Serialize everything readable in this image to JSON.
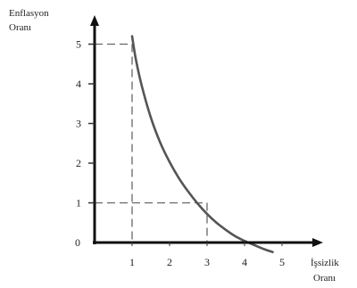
{
  "chart_data": {
    "type": "line",
    "ylabel_lines": [
      "Enflasyon",
      "Oranı"
    ],
    "xlabel_lines": [
      "İşsizlik",
      "Oranı"
    ],
    "origin_label": "0",
    "xlim": [
      0,
      5.5
    ],
    "ylim": [
      0,
      5.5
    ],
    "xticks": [
      "1",
      "2",
      "3",
      "4",
      "5"
    ],
    "yticks": [
      "1",
      "2",
      "3",
      "4",
      "5"
    ],
    "grid": false,
    "series": [
      {
        "x": [
          1.0,
          1.1,
          1.25,
          1.5,
          1.75,
          2.0,
          2.25,
          2.5,
          2.75,
          3.0,
          3.25,
          3.5,
          3.75,
          4.0,
          4.1,
          4.25,
          4.5,
          4.75
        ],
        "y": [
          5.2,
          4.62,
          3.98,
          3.15,
          2.52,
          2.03,
          1.62,
          1.28,
          0.98,
          0.72,
          0.5,
          0.32,
          0.16,
          0.04,
          0.0,
          -0.06,
          -0.16,
          -0.24
        ],
        "color": "#555555"
      }
    ],
    "reference_points": [
      {
        "x": 1,
        "y": 5
      },
      {
        "x": 3,
        "y": 1
      }
    ]
  }
}
